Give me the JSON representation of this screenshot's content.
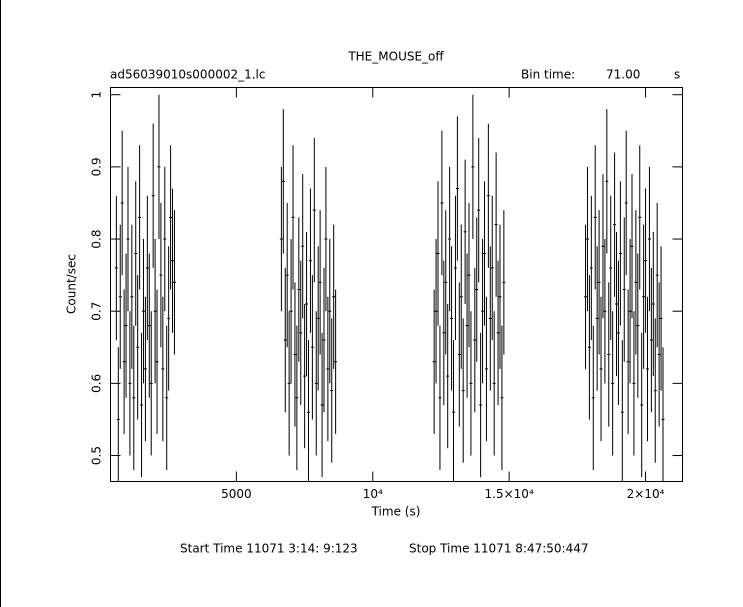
{
  "chart_data": {
    "type": "errorbar",
    "title": "THE_MOUSE_off",
    "file_name": "ad56039010s000002_1.lc",
    "bin_time": {
      "label": "Bin time:",
      "value": "71.00",
      "unit": "s"
    },
    "x_label": "Time (s)",
    "y_label": "Count/sec",
    "start_time": "Start Time 11071  3:14: 9:123",
    "stop_time": "Stop Time 11071  8:47:50:447",
    "xlim": [
      385,
      21355
    ],
    "ylim": [
      0.464,
      1.01
    ],
    "xticks": [
      5000,
      {
        "value": 10000,
        "label": "10⁴"
      },
      {
        "value": 15000,
        "label": "1.5×10⁴"
      },
      {
        "value": 20000,
        "label": "2×10⁴"
      }
    ],
    "yticks": [
      0.5,
      0.6,
      0.7,
      0.8,
      0.9,
      1
    ],
    "color": "#000000",
    "series": [
      {
        "error": 0.1,
        "x": [
          600,
          671,
          742,
          813,
          884,
          955,
          1026,
          1097,
          1168,
          1239,
          1310,
          1381,
          1452,
          1523,
          1594,
          1665,
          1736,
          1807,
          1878,
          1949,
          2020,
          2091,
          2162,
          2233,
          2304,
          2375,
          2446,
          2517,
          2588,
          2659,
          2730,
          6650,
          6721,
          6792,
          6863,
          6934,
          7005,
          7076,
          7147,
          7218,
          7289,
          7360,
          7431,
          7502,
          7573,
          7644,
          7715,
          7786,
          7857,
          7928,
          7999,
          8070,
          8141,
          8212,
          8283,
          8354,
          8425,
          8496,
          8567,
          8638,
          12250,
          12321,
          12392,
          12463,
          12534,
          12605,
          12676,
          12747,
          12818,
          12889,
          12960,
          13031,
          13102,
          13173,
          13244,
          13315,
          13386,
          13457,
          13528,
          13599,
          13670,
          13741,
          13812,
          13883,
          13954,
          14025,
          14096,
          14167,
          14238,
          14309,
          14380,
          14451,
          14522,
          14593,
          14664,
          14735,
          14806,
          17800,
          17871,
          17942,
          18013,
          18084,
          18155,
          18226,
          18297,
          18368,
          18439,
          18510,
          18581,
          18652,
          18723,
          18794,
          18865,
          18936,
          19007,
          19078,
          19149,
          19220,
          19291,
          19362,
          19433,
          19504,
          19575,
          19646,
          19717,
          19788,
          19859,
          19930,
          20001,
          20072,
          20143,
          20214,
          20285,
          20356,
          20427,
          20498,
          20569,
          20640
        ],
        "values": [
          0.76,
          0.55,
          0.72,
          0.85,
          0.63,
          0.68,
          0.8,
          0.6,
          0.72,
          0.58,
          0.78,
          0.65,
          0.83,
          0.57,
          0.7,
          0.62,
          0.76,
          0.68,
          0.6,
          0.86,
          0.7,
          0.63,
          0.9,
          0.75,
          0.62,
          0.8,
          0.58,
          0.69,
          0.83,
          0.77,
          0.74,
          0.8,
          0.88,
          0.66,
          0.75,
          0.6,
          0.7,
          0.83,
          0.64,
          0.58,
          0.73,
          0.67,
          0.79,
          0.61,
          0.71,
          0.56,
          0.77,
          0.65,
          0.84,
          0.6,
          0.69,
          0.74,
          0.57,
          0.66,
          0.8,
          0.62,
          0.7,
          0.59,
          0.72,
          0.63,
          0.63,
          0.7,
          0.78,
          0.58,
          0.85,
          0.67,
          0.74,
          0.61,
          0.8,
          0.69,
          0.56,
          0.76,
          0.87,
          0.64,
          0.72,
          0.59,
          0.81,
          0.68,
          0.75,
          0.6,
          0.9,
          0.66,
          0.73,
          0.84,
          0.57,
          0.7,
          0.78,
          0.62,
          0.86,
          0.69,
          0.76,
          0.6,
          0.82,
          0.67,
          0.72,
          0.58,
          0.74,
          0.72,
          0.8,
          0.65,
          0.76,
          0.58,
          0.83,
          0.69,
          0.74,
          0.62,
          0.79,
          0.7,
          0.88,
          0.64,
          0.76,
          0.6,
          0.82,
          0.71,
          0.67,
          0.78,
          0.56,
          0.73,
          0.85,
          0.63,
          0.7,
          0.79,
          0.6,
          0.74,
          0.68,
          0.83,
          0.57,
          0.72,
          0.77,
          0.62,
          0.8,
          0.66,
          0.71,
          0.59,
          0.75,
          0.64,
          0.69,
          0.55
        ]
      }
    ]
  }
}
